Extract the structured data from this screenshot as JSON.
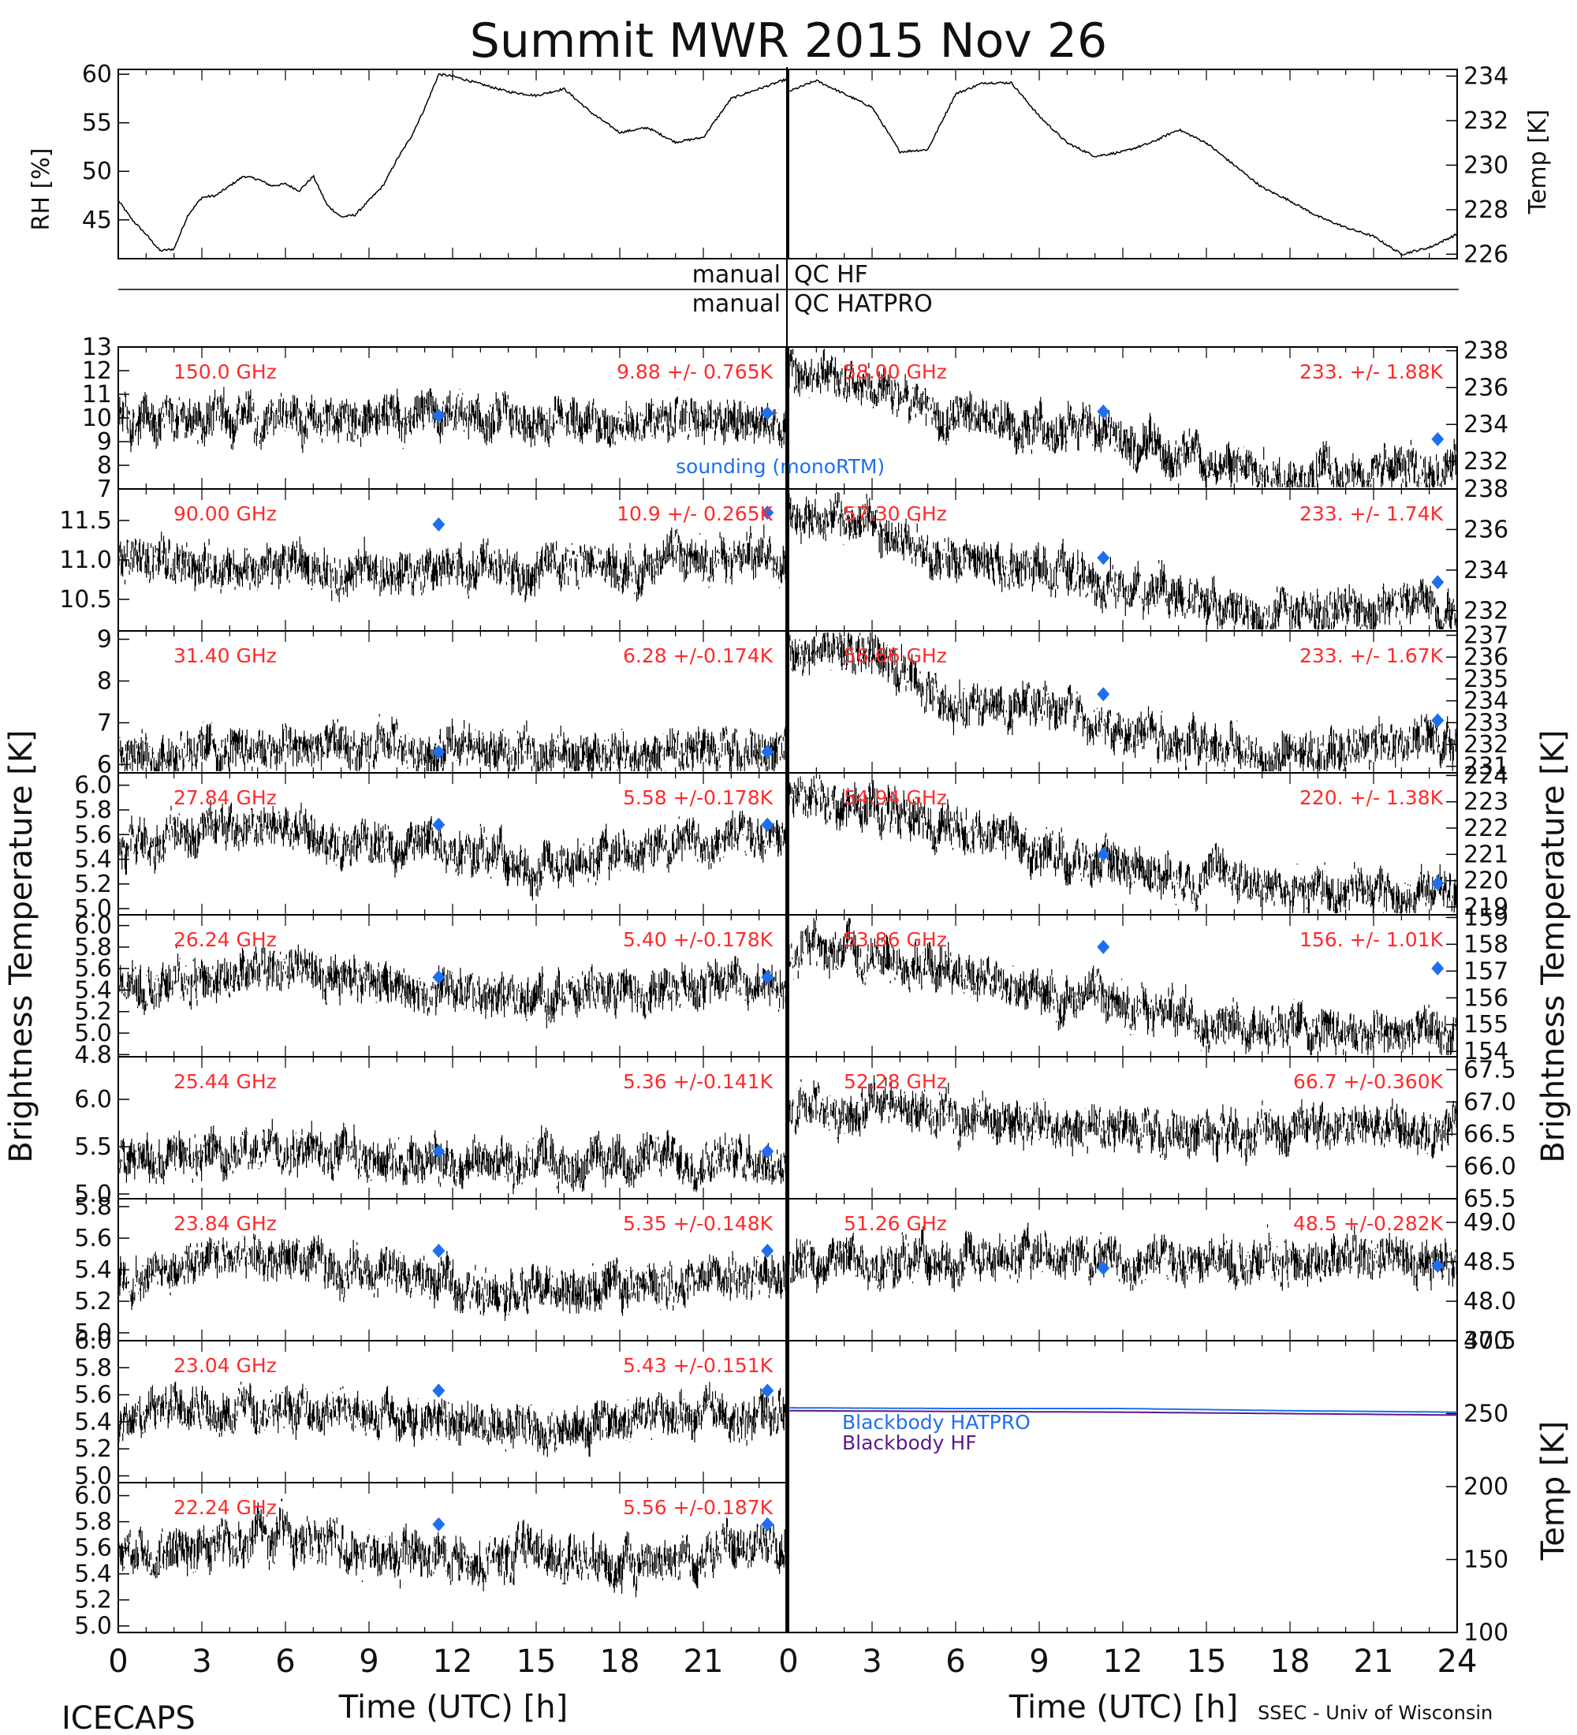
{
  "header": {
    "title": "Summit MWR 2015 Nov 26",
    "left_footer": "ICECAPS",
    "right_footer": "SSEC - Univ of Wisconsin"
  },
  "labels": {
    "rh_axis": "RH [%]",
    "temp_axis": "Temp [K]",
    "tb_axis_left": "Brightness Temperature [K]",
    "tb_axis_right": "Brightness Temperature [K]",
    "bb_axis": "Temp [K]",
    "time_axis_left": "Time (UTC) [h]",
    "time_axis_right": "Time (UTC) [h]",
    "qc_left_1": "manual",
    "qc_right_1": "QC HF",
    "qc_left_2": "manual",
    "qc_right_2": "QC HATPRO",
    "sounding_note": "sounding (monoRTM)"
  },
  "chart_data": [
    {
      "type": "line",
      "panel": "rh",
      "xlim": [
        0,
        24
      ],
      "ylim": [
        41,
        60.5
      ],
      "yticks": [
        "45",
        "50",
        "55",
        "60"
      ],
      "x": [
        0,
        0.5,
        1.0,
        1.5,
        2.0,
        2.5,
        3.0,
        3.5,
        4.0,
        4.5,
        5.0,
        5.5,
        6.0,
        6.5,
        7.0,
        7.5,
        8.0,
        8.5,
        9.0,
        9.5,
        10.0,
        10.5,
        11.0,
        11.5,
        12.0,
        13.0,
        14.0,
        15.0,
        16.0,
        17.0,
        18.0,
        19.0,
        20.0,
        21.0,
        22.0,
        23.0,
        24.0
      ],
      "y": [
        47,
        45,
        43.5,
        41.8,
        42,
        45.5,
        47.3,
        47.5,
        48.5,
        49.5,
        49.2,
        48.5,
        48.7,
        48.0,
        49.5,
        46.5,
        45.3,
        45.5,
        47.0,
        48.5,
        51.2,
        53.5,
        56.5,
        60.0,
        59.8,
        59.0,
        58.2,
        57.8,
        58.5,
        56.0,
        54.0,
        54.5,
        53.0,
        53.5,
        57.5,
        58.5,
        59.5
      ]
    },
    {
      "type": "line",
      "panel": "temperature",
      "xlim": [
        0,
        24
      ],
      "ylim": [
        225.8,
        234.3
      ],
      "yticks": [
        "226",
        "228",
        "230",
        "232",
        "234"
      ],
      "x": [
        0,
        1.0,
        2.0,
        3.0,
        4.0,
        5.0,
        6.0,
        7.0,
        8.0,
        9.0,
        10.0,
        11.0,
        12.0,
        13.0,
        14.0,
        15.0,
        16.0,
        17.0,
        18.0,
        19.0,
        20.0,
        21.0,
        22.0,
        23.0,
        24.0
      ],
      "y": [
        233.3,
        233.8,
        233.2,
        232.6,
        230.6,
        230.7,
        233.2,
        233.7,
        233.7,
        232.2,
        231.0,
        230.4,
        230.6,
        231.0,
        231.6,
        231.0,
        230.0,
        229.0,
        228.4,
        227.7,
        227.2,
        226.8,
        226.0,
        226.3,
        226.9
      ]
    },
    {
      "type": "scatter",
      "panel": "150.0 GHz",
      "label": "150.0 GHz",
      "stats": "9.88 +/- 0.765K",
      "xlim": [
        0,
        24
      ],
      "ylim": [
        7,
        13
      ],
      "yticks": [
        "7",
        "8",
        "9",
        "10",
        "11",
        "12",
        "13"
      ],
      "x": [
        0,
        3,
        6,
        9,
        12,
        15,
        18,
        21,
        24
      ],
      "y": [
        10.1,
        10.0,
        9.9,
        10.0,
        9.9,
        9.8,
        9.9,
        9.8,
        9.9
      ],
      "sounding": [
        {
          "x": 11.5,
          "y": 10.1
        },
        {
          "x": 23.3,
          "y": 10.2
        }
      ]
    },
    {
      "type": "scatter",
      "panel": "90.00 GHz",
      "label": "90.00 GHz",
      "stats": "10.9 +/- 0.265K",
      "xlim": [
        0,
        24
      ],
      "ylim": [
        10.1,
        11.9
      ],
      "yticks": [
        "10.5",
        "11.0",
        "11.5"
      ],
      "x": [
        0,
        3,
        6,
        9,
        12,
        15,
        18,
        21,
        24
      ],
      "y": [
        11.0,
        10.95,
        10.9,
        10.85,
        10.9,
        10.95,
        10.9,
        11.0,
        11.1
      ],
      "sounding": [
        {
          "x": 11.5,
          "y": 11.45
        },
        {
          "x": 23.3,
          "y": 11.6
        }
      ]
    },
    {
      "type": "scatter",
      "panel": "31.40 GHz",
      "label": "31.40 GHz",
      "stats": "6.28 +/-0.174K",
      "xlim": [
        0,
        24
      ],
      "ylim": [
        5.8,
        9.2
      ],
      "yticks": [
        "6",
        "7",
        "8",
        "9"
      ],
      "x": [
        0,
        3,
        6,
        9,
        12,
        15,
        18,
        21,
        24
      ],
      "y": [
        6.3,
        6.4,
        6.5,
        6.4,
        6.3,
        6.3,
        6.3,
        6.4,
        6.3
      ],
      "sounding": [
        {
          "x": 11.5,
          "y": 6.3
        },
        {
          "x": 23.3,
          "y": 6.3
        }
      ]
    },
    {
      "type": "scatter",
      "panel": "27.84 GHz",
      "label": "27.84 GHz",
      "stats": "5.58 +/-0.178K",
      "xlim": [
        0,
        24
      ],
      "ylim": [
        4.95,
        6.1
      ],
      "yticks": [
        "5.0",
        "5.2",
        "5.4",
        "5.6",
        "5.8",
        "6.0"
      ],
      "x": [
        0,
        3,
        6,
        9,
        12,
        15,
        18,
        21,
        24
      ],
      "y": [
        5.5,
        5.65,
        5.7,
        5.5,
        5.55,
        5.3,
        5.45,
        5.55,
        5.6
      ],
      "sounding": [
        {
          "x": 11.5,
          "y": 5.68
        },
        {
          "x": 23.3,
          "y": 5.68
        }
      ]
    },
    {
      "type": "scatter",
      "panel": "26.24 GHz",
      "label": "26.24 GHz",
      "stats": "5.40 +/-0.178K",
      "xlim": [
        0,
        24
      ],
      "ylim": [
        4.78,
        6.1
      ],
      "yticks": [
        "4.8",
        "5.0",
        "5.2",
        "5.4",
        "5.6",
        "5.8",
        "6.0"
      ],
      "x": [
        0,
        3,
        6,
        9,
        12,
        15,
        18,
        21,
        24
      ],
      "y": [
        5.4,
        5.5,
        5.6,
        5.5,
        5.35,
        5.3,
        5.4,
        5.5,
        5.45
      ],
      "sounding": [
        {
          "x": 11.5,
          "y": 5.52
        },
        {
          "x": 23.3,
          "y": 5.52
        }
      ]
    },
    {
      "type": "scatter",
      "panel": "25.44 GHz",
      "label": "25.44 GHz",
      "stats": "5.36 +/-0.141K",
      "xlim": [
        0,
        24
      ],
      "ylim": [
        4.95,
        6.45
      ],
      "yticks": [
        "5.0",
        "5.5",
        "6.0"
      ],
      "x": [
        0,
        3,
        6,
        9,
        12,
        15,
        18,
        21,
        24
      ],
      "y": [
        5.35,
        5.4,
        5.45,
        5.4,
        5.35,
        5.35,
        5.35,
        5.4,
        5.35
      ],
      "sounding": [
        {
          "x": 11.5,
          "y": 5.45
        },
        {
          "x": 23.3,
          "y": 5.45
        }
      ]
    },
    {
      "type": "scatter",
      "panel": "23.84 GHz",
      "label": "23.84 GHz",
      "stats": "5.35 +/-0.148K",
      "xlim": [
        0,
        24
      ],
      "ylim": [
        4.95,
        5.85
      ],
      "yticks": [
        "5.0",
        "5.2",
        "5.4",
        "5.6",
        "5.8"
      ],
      "x": [
        0,
        3,
        6,
        9,
        12,
        15,
        18,
        21,
        24
      ],
      "y": [
        5.3,
        5.45,
        5.45,
        5.4,
        5.3,
        5.25,
        5.3,
        5.35,
        5.35
      ],
      "sounding": [
        {
          "x": 11.5,
          "y": 5.52
        },
        {
          "x": 23.3,
          "y": 5.52
        }
      ]
    },
    {
      "type": "scatter",
      "panel": "23.04 GHz",
      "label": "23.04 GHz",
      "stats": "5.43 +/-0.151K",
      "xlim": [
        0,
        24
      ],
      "ylim": [
        4.95,
        6.0
      ],
      "yticks": [
        "5.0",
        "5.2",
        "5.4",
        "5.6",
        "5.8",
        "6.0"
      ],
      "x": [
        0,
        3,
        6,
        9,
        12,
        15,
        18,
        21,
        24
      ],
      "y": [
        5.4,
        5.5,
        5.5,
        5.45,
        5.4,
        5.35,
        5.4,
        5.45,
        5.45
      ],
      "sounding": [
        {
          "x": 11.5,
          "y": 5.63
        },
        {
          "x": 23.3,
          "y": 5.63
        }
      ]
    },
    {
      "type": "scatter",
      "panel": "22.24 GHz",
      "label": "22.24 GHz",
      "stats": "5.56 +/-0.187K",
      "xlim": [
        0,
        24
      ],
      "ylim": [
        4.95,
        6.1
      ],
      "yticks": [
        "5.0",
        "5.2",
        "5.4",
        "5.6",
        "5.8",
        "6.0"
      ],
      "x": [
        0,
        3,
        6,
        9,
        12,
        15,
        18,
        21,
        24
      ],
      "y": [
        5.5,
        5.6,
        5.7,
        5.6,
        5.55,
        5.5,
        5.5,
        5.55,
        5.6
      ],
      "sounding": [
        {
          "x": 11.5,
          "y": 5.78
        },
        {
          "x": 23.3,
          "y": 5.78
        }
      ]
    },
    {
      "type": "scatter",
      "panel": "58.00 GHz",
      "label": "58.00 GHz",
      "stats": "233. +/- 1.88K",
      "xlim": [
        0,
        24
      ],
      "ylim": [
        230.5,
        238.2
      ],
      "yticks": [
        "232",
        "234",
        "236",
        "238"
      ],
      "x": [
        0,
        2,
        3,
        4,
        5,
        6,
        8,
        9,
        10,
        11,
        12,
        14,
        16,
        18,
        20,
        22,
        24
      ],
      "y": [
        237.0,
        236.5,
        236.3,
        235.5,
        234.7,
        234.6,
        234.1,
        234.0,
        234.3,
        233.8,
        233.2,
        232.5,
        231.6,
        231.2,
        231.5,
        231.6,
        231.7
      ],
      "sounding": [
        {
          "x": 11.3,
          "y": 234.7
        },
        {
          "x": 23.3,
          "y": 233.2
        }
      ]
    },
    {
      "type": "scatter",
      "panel": "57.30 GHz",
      "label": "57.30 GHz",
      "stats": "233. +/- 1.74K",
      "xlim": [
        0,
        24
      ],
      "ylim": [
        231,
        238
      ],
      "yticks": [
        "232",
        "234",
        "236",
        "238"
      ],
      "x": [
        0,
        2,
        3,
        4,
        5,
        6,
        8,
        9,
        10,
        11,
        12,
        14,
        16,
        18,
        20,
        22,
        24
      ],
      "y": [
        236.5,
        236.2,
        235.9,
        235.3,
        234.8,
        234.6,
        234.0,
        233.9,
        234.2,
        233.6,
        233.1,
        232.5,
        231.9,
        231.7,
        232.0,
        232.3,
        232.1
      ],
      "sounding": [
        {
          "x": 11.3,
          "y": 234.6
        },
        {
          "x": 23.3,
          "y": 233.4
        }
      ]
    },
    {
      "type": "scatter",
      "panel": "56.66 GHz",
      "label": "56.66 GHz",
      "stats": "233. +/- 1.67K",
      "xlim": [
        0,
        24
      ],
      "ylim": [
        230.7,
        237.2
      ],
      "yticks": [
        "231",
        "232",
        "233",
        "234",
        "235",
        "236",
        "237"
      ],
      "x": [
        0,
        2,
        3,
        4,
        5,
        6,
        8,
        9,
        10,
        11,
        12,
        14,
        16,
        18,
        20,
        22,
        24
      ],
      "y": [
        236.5,
        236.3,
        235.9,
        235.2,
        234.3,
        234.0,
        233.6,
        233.6,
        234.0,
        233.4,
        232.8,
        232.2,
        231.8,
        231.6,
        231.8,
        232.3,
        232.0
      ],
      "sounding": [
        {
          "x": 11.3,
          "y": 234.3
        },
        {
          "x": 23.3,
          "y": 233.1
        }
      ]
    },
    {
      "type": "scatter",
      "panel": "54.94 GHz",
      "label": "54.94 GHz",
      "stats": "220. +/- 1.38K",
      "xlim": [
        0,
        24
      ],
      "ylim": [
        218.7,
        224.1
      ],
      "yticks": [
        "219",
        "220",
        "221",
        "222",
        "223",
        "224"
      ],
      "x": [
        0,
        3,
        6,
        9,
        12,
        15,
        18,
        21,
        24
      ],
      "y": [
        223.2,
        222.6,
        221.9,
        221.3,
        220.5,
        220.1,
        219.7,
        219.7,
        219.6
      ],
      "sounding": [
        {
          "x": 11.3,
          "y": 221.0
        },
        {
          "x": 23.3,
          "y": 219.9
        }
      ]
    },
    {
      "type": "scatter",
      "panel": "53.86 GHz",
      "label": "53.86 GHz",
      "stats": "156. +/- 1.01K",
      "xlim": [
        0,
        24
      ],
      "ylim": [
        153.8,
        159.1
      ],
      "yticks": [
        "154",
        "155",
        "156",
        "157",
        "158",
        "159"
      ],
      "x": [
        0,
        3,
        6,
        9,
        12,
        15,
        18,
        21,
        24
      ],
      "y": [
        157.8,
        157.6,
        156.9,
        156.2,
        155.7,
        155.3,
        155.0,
        154.8,
        154.7
      ],
      "sounding": [
        {
          "x": 11.3,
          "y": 157.9
        },
        {
          "x": 23.3,
          "y": 157.1
        }
      ]
    },
    {
      "type": "scatter",
      "panel": "52.28 GHz",
      "label": "52.28 GHz",
      "stats": "66.7 +/-0.360K",
      "xlim": [
        0,
        24
      ],
      "ylim": [
        65.5,
        67.7
      ],
      "yticks": [
        "65.5",
        "66.0",
        "66.5",
        "67.0",
        "67.5"
      ],
      "x": [
        0,
        3,
        6,
        9,
        12,
        15,
        18,
        21,
        24
      ],
      "y": [
        66.8,
        66.9,
        66.8,
        66.7,
        66.6,
        66.5,
        66.6,
        66.7,
        66.6
      ],
      "sounding": []
    },
    {
      "type": "scatter",
      "panel": "51.26 GHz",
      "label": "51.26 GHz",
      "stats": "48.5 +/-0.282K",
      "xlim": [
        0,
        24
      ],
      "ylim": [
        47.5,
        49.3
      ],
      "yticks": [
        "47.5",
        "48.0",
        "48.5",
        "49.0",
        "49.5"
      ],
      "x": [
        0,
        3,
        6,
        9,
        12,
        15,
        18,
        21,
        24
      ],
      "y": [
        48.5,
        48.55,
        48.5,
        48.6,
        48.5,
        48.5,
        48.5,
        48.55,
        48.5
      ],
      "sounding": [
        {
          "x": 11.3,
          "y": 48.42
        },
        {
          "x": 23.3,
          "y": 48.45
        }
      ]
    },
    {
      "type": "line",
      "panel": "blackbody",
      "xlim": [
        0,
        24
      ],
      "ylim": [
        100,
        300
      ],
      "yticks": [
        "100",
        "150",
        "200",
        "250",
        "300"
      ],
      "x": [
        0,
        6,
        12,
        18,
        24
      ],
      "series": [
        {
          "name": "Blackbody HATPRO",
          "values": [
            254,
            253.5,
            253.5,
            252,
            251
          ],
          "color": "#1e6ff0"
        },
        {
          "name": "Blackbody HF",
          "values": [
            252,
            251.5,
            251,
            250,
            249
          ],
          "color": "#5a1a8c"
        }
      ]
    }
  ],
  "xaxis_ticks_left": [
    "0",
    "3",
    "6",
    "9",
    "12",
    "15",
    "18",
    "21"
  ],
  "xaxis_ticks_right": [
    "0",
    "3",
    "6",
    "9",
    "12",
    "15",
    "18",
    "21",
    "24"
  ],
  "colors": {
    "label_red": "#ff2a2a",
    "sounding_blue": "#1e6ff0",
    "hf_purple": "#5a1a8c",
    "data": "#000000"
  }
}
